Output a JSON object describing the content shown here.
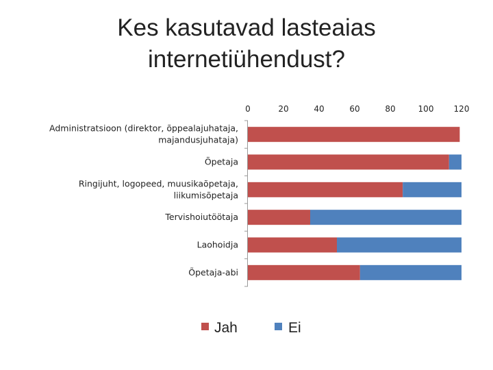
{
  "title_lines": [
    "Kes kasutavad lasteaias",
    "internetiühendust?"
  ],
  "colors": {
    "jah": "#C0504D",
    "ei": "#4F81BD"
  },
  "chart_data": {
    "type": "bar",
    "orientation": "horizontal",
    "stacked": true,
    "title": "Kes kasutavad lasteaias internetiühendust?",
    "categories": [
      "Administratsioon (direktor, õppealajuhataja, majandusjuhataja)",
      "Õpetaja",
      "Ringijuht, logopeed, muusikaõpetaja, liikumisõpetaja",
      "Tervishoiutöötaja",
      "Laohoidja",
      "Õpetaja-abi"
    ],
    "category_lines": [
      [
        "Administratsioon (direktor, õppealajuhataja,",
        "majandusjuhataja)"
      ],
      [
        "Õpetaja"
      ],
      [
        "Ringijuht, logopeed, muusikaõpetaja,",
        "liikumisõpetaja"
      ],
      [
        "Tervishoiutöötaja"
      ],
      [
        "Laohoidja"
      ],
      [
        "Õpetaja-abi"
      ]
    ],
    "series": [
      {
        "name": "Jah",
        "values": [
          119,
          113,
          87,
          35,
          50,
          63
        ]
      },
      {
        "name": "Ei",
        "values": [
          0,
          7,
          33,
          85,
          70,
          57
        ]
      }
    ],
    "xlim": [
      0,
      120
    ],
    "xticks": [
      "0",
      "20",
      "40",
      "60",
      "80",
      "100",
      "120"
    ],
    "axis_position": "top",
    "grid": false,
    "legend": "bottom"
  }
}
